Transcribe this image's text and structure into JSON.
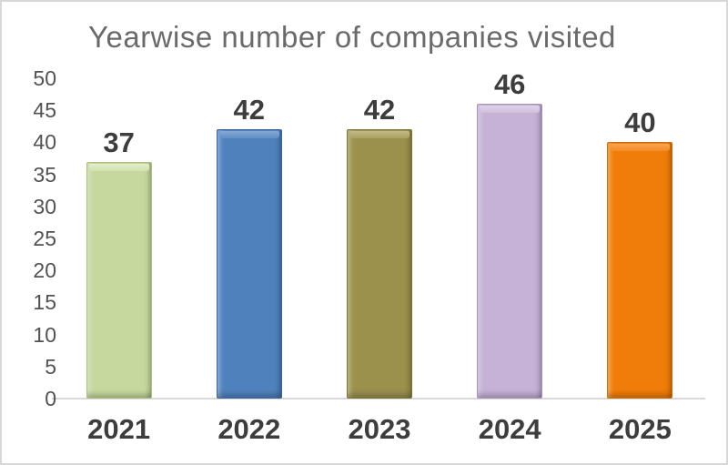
{
  "chart_data": {
    "type": "bar",
    "title": "Yearwise number of companies visited",
    "categories": [
      "2021",
      "2022",
      "2023",
      "2024",
      "2025"
    ],
    "values": [
      37,
      42,
      42,
      46,
      40
    ],
    "data_labels": [
      "37",
      "42",
      "42",
      "46",
      "40"
    ],
    "y_ticks": [
      "0",
      "5",
      "10",
      "15",
      "20",
      "25",
      "30",
      "35",
      "40",
      "45",
      "50"
    ],
    "ylim": [
      0,
      50
    ],
    "xlabel": "",
    "ylabel": "",
    "grid": false,
    "legend": false,
    "bar_style": "3d-bevel",
    "bar_colors": [
      "#c6d89e",
      "#4f81bd",
      "#9b914d",
      "#c5b2d6",
      "#f07d09"
    ],
    "bar_cap_colors": [
      "#e4efcb",
      "#84a8d3",
      "#c1b987",
      "#ded3ea",
      "#f9a452"
    ],
    "bar_border_colors": [
      "#aabf80",
      "#3a659c",
      "#7b733b",
      "#a991c2",
      "#ce6c06"
    ]
  },
  "colors": {
    "title_text": "#6a6a6a",
    "y_axis_labels": "#525252",
    "x_axis_labels": "#3d3d3d",
    "value_labels": "#3d3d3d",
    "axis_line": "#d9d9d9",
    "frame_border": "#d8d8d8",
    "background": "#ffffff"
  }
}
